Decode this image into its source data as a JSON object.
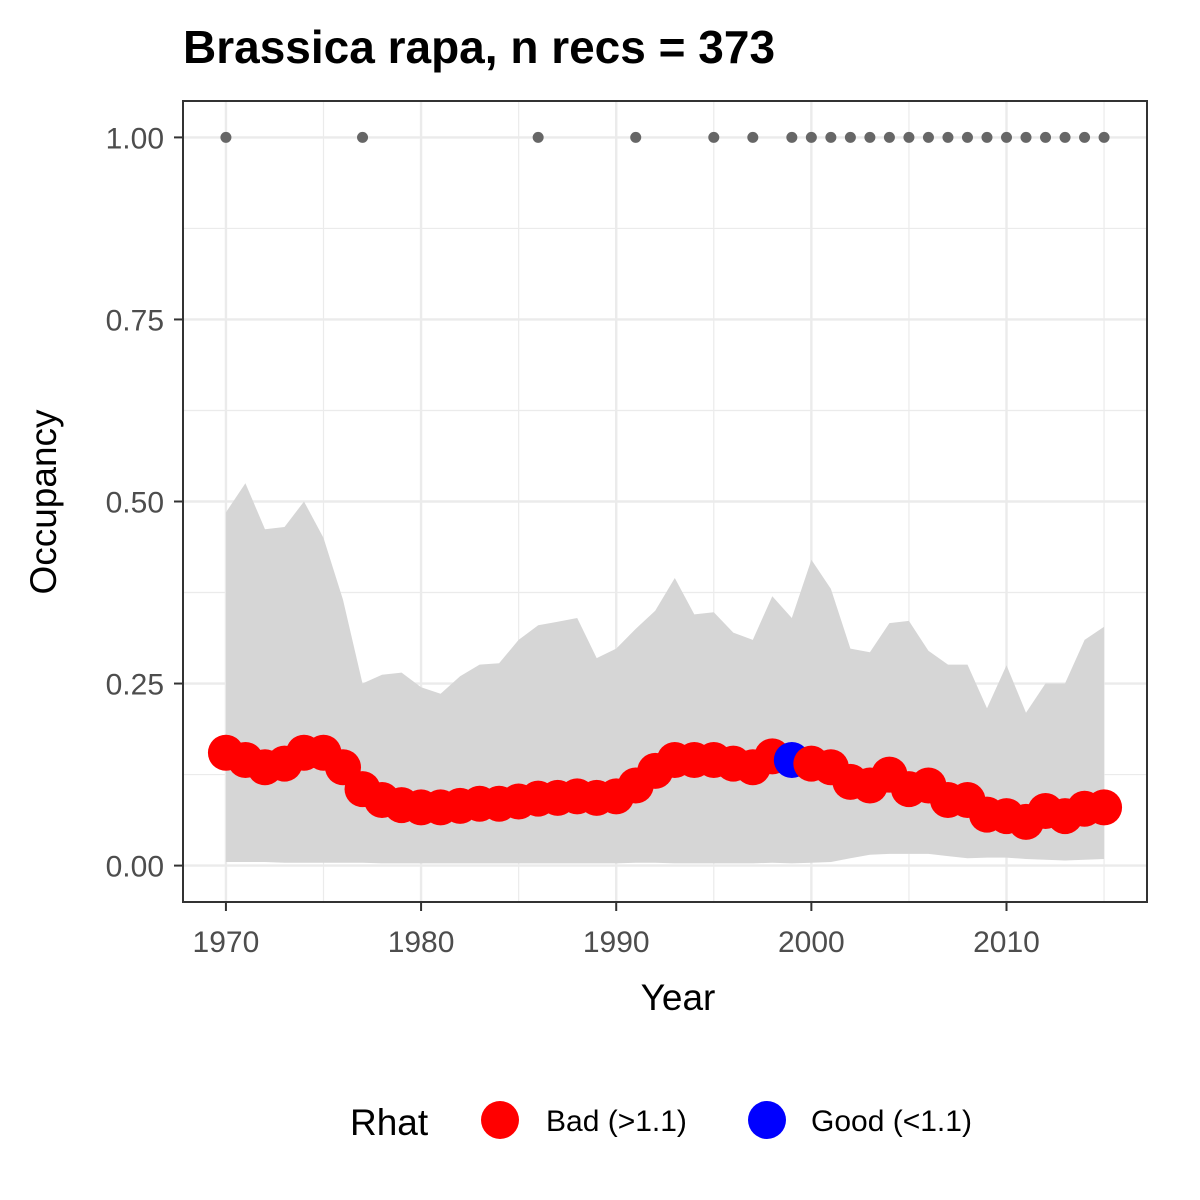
{
  "chart_data": {
    "type": "scatter",
    "title": "Brassica rapa, n recs = 373",
    "xlabel": "Year",
    "ylabel": "Occupancy",
    "xlim": [
      1967.8,
      2017.2
    ],
    "ylim": [
      -0.05,
      1.05
    ],
    "x_ticks": [
      1970,
      1980,
      1990,
      2000,
      2010
    ],
    "y_ticks": [
      0.0,
      0.25,
      0.5,
      0.75,
      1.0
    ],
    "x_tick_labels": [
      "1970",
      "1980",
      "1990",
      "2000",
      "2010"
    ],
    "y_tick_labels": [
      "0.00",
      "0.25",
      "0.50",
      "0.75",
      "1.00"
    ],
    "grid": true,
    "legend": {
      "title": "Rhat",
      "position": "bottom",
      "entries": [
        {
          "label": "Bad (>1.1)",
          "color": "#ff0000"
        },
        {
          "label": "Good (<1.1)",
          "color": "#0000ff"
        }
      ]
    },
    "colors": {
      "bad": "#ff0000",
      "good": "#0000ff",
      "ribbon": "#d6d6d6",
      "records": "#666666"
    },
    "series": [
      {
        "name": "Occupancy",
        "x": [
          1970,
          1971,
          1972,
          1973,
          1974,
          1975,
          1976,
          1977,
          1978,
          1979,
          1980,
          1981,
          1982,
          1983,
          1984,
          1985,
          1986,
          1987,
          1988,
          1989,
          1990,
          1991,
          1992,
          1993,
          1994,
          1995,
          1996,
          1997,
          1998,
          1999,
          2000,
          2001,
          2002,
          2003,
          2004,
          2005,
          2006,
          2007,
          2008,
          2009,
          2010,
          2011,
          2012,
          2013,
          2014,
          2015
        ],
        "y": [
          0.155,
          0.145,
          0.135,
          0.14,
          0.155,
          0.155,
          0.135,
          0.105,
          0.09,
          0.083,
          0.08,
          0.08,
          0.082,
          0.085,
          0.085,
          0.088,
          0.092,
          0.093,
          0.095,
          0.093,
          0.095,
          0.11,
          0.13,
          0.145,
          0.145,
          0.145,
          0.14,
          0.135,
          0.15,
          0.145,
          0.14,
          0.135,
          0.115,
          0.11,
          0.125,
          0.105,
          0.11,
          0.09,
          0.09,
          0.07,
          0.068,
          0.06,
          0.075,
          0.068,
          0.078,
          0.08
        ],
        "rhat": [
          "Bad",
          "Bad",
          "Bad",
          "Bad",
          "Bad",
          "Bad",
          "Bad",
          "Bad",
          "Bad",
          "Bad",
          "Bad",
          "Bad",
          "Bad",
          "Bad",
          "Bad",
          "Bad",
          "Bad",
          "Bad",
          "Bad",
          "Bad",
          "Bad",
          "Bad",
          "Bad",
          "Bad",
          "Bad",
          "Bad",
          "Bad",
          "Bad",
          "Bad",
          "Good",
          "Bad",
          "Bad",
          "Bad",
          "Bad",
          "Bad",
          "Bad",
          "Bad",
          "Bad",
          "Bad",
          "Bad",
          "Bad",
          "Bad",
          "Bad",
          "Bad",
          "Bad",
          "Bad"
        ],
        "lower": [
          0.005,
          0.005,
          0.005,
          0.004,
          0.004,
          0.004,
          0.004,
          0.004,
          0.003,
          0.003,
          0.003,
          0.003,
          0.003,
          0.003,
          0.003,
          0.003,
          0.003,
          0.003,
          0.003,
          0.003,
          0.003,
          0.004,
          0.004,
          0.003,
          0.003,
          0.003,
          0.003,
          0.003,
          0.004,
          0.003,
          0.004,
          0.005,
          0.01,
          0.015,
          0.016,
          0.016,
          0.016,
          0.013,
          0.01,
          0.011,
          0.011,
          0.009,
          0.008,
          0.007,
          0.008,
          0.009
        ],
        "upper": [
          0.485,
          0.525,
          0.462,
          0.465,
          0.5,
          0.45,
          0.365,
          0.25,
          0.262,
          0.265,
          0.245,
          0.236,
          0.26,
          0.276,
          0.278,
          0.31,
          0.33,
          0.335,
          0.34,
          0.285,
          0.298,
          0.325,
          0.35,
          0.395,
          0.345,
          0.348,
          0.32,
          0.31,
          0.37,
          0.34,
          0.42,
          0.38,
          0.298,
          0.293,
          0.333,
          0.336,
          0.295,
          0.276,
          0.276,
          0.216,
          0.275,
          0.21,
          0.25,
          0.25,
          0.31,
          0.328
        ]
      },
      {
        "name": "Records",
        "x": [
          1970,
          1977,
          1986,
          1991,
          1995,
          1997,
          1999,
          2000,
          2001,
          2002,
          2003,
          2004,
          2005,
          2006,
          2007,
          2008,
          2009,
          2010,
          2011,
          2012,
          2013,
          2014,
          2015
        ],
        "y": [
          1,
          1,
          1,
          1,
          1,
          1,
          1,
          1,
          1,
          1,
          1,
          1,
          1,
          1,
          1,
          1,
          1,
          1,
          1,
          1,
          1,
          1,
          1
        ]
      }
    ]
  }
}
